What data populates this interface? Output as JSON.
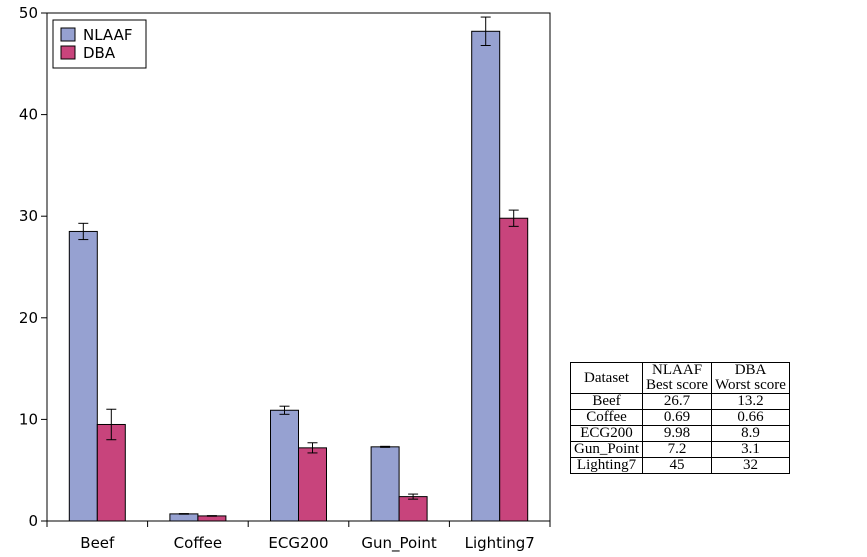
{
  "chart_data": {
    "type": "bar",
    "categories": [
      "Beef",
      "Coffee",
      "ECG200",
      "Gun_Point",
      "Lighting7"
    ],
    "series": [
      {
        "name": "NLAAF",
        "color": "#96a1d1",
        "values": [
          28.5,
          0.7,
          10.9,
          7.3,
          48.2
        ],
        "errors": [
          0.8,
          0.03,
          0.4,
          0.05,
          1.4
        ]
      },
      {
        "name": "DBA",
        "color": "#c8447c",
        "values": [
          9.5,
          0.5,
          7.2,
          2.4,
          29.8
        ],
        "errors": [
          1.5,
          0.03,
          0.5,
          0.25,
          0.8
        ]
      }
    ],
    "yticks": [
      0,
      10,
      20,
      30,
      40,
      50
    ],
    "ylim": [
      0,
      50
    ],
    "legend_position": "top-left",
    "grid": false,
    "xlabel": "",
    "ylabel": "",
    "title": ""
  },
  "table": {
    "header": {
      "dataset": "Dataset",
      "col1_top": "NLAAF",
      "col1_bottom": "Best score",
      "col2_top": "DBA",
      "col2_bottom": "Worst score"
    },
    "rows": [
      [
        "Beef",
        "26.7",
        "13.2"
      ],
      [
        "Coffee",
        "0.69",
        "0.66"
      ],
      [
        "ECG200",
        "9.98",
        "8.9"
      ],
      [
        "Gun_Point",
        "7.2",
        "3.1"
      ],
      [
        "Lighting7",
        "45",
        "32"
      ]
    ]
  }
}
